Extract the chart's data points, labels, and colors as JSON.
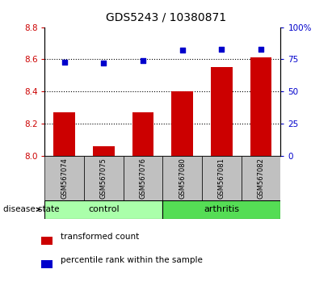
{
  "title": "GDS5243 / 10380871",
  "samples": [
    "GSM567074",
    "GSM567075",
    "GSM567076",
    "GSM567080",
    "GSM567081",
    "GSM567082"
  ],
  "bar_values": [
    8.27,
    8.06,
    8.27,
    8.4,
    8.55,
    8.61
  ],
  "scatter_values": [
    73,
    72,
    74,
    82,
    83,
    83
  ],
  "ylim_left": [
    8.0,
    8.8
  ],
  "ylim_right": [
    0,
    100
  ],
  "yticks_left": [
    8.0,
    8.2,
    8.4,
    8.6,
    8.8
  ],
  "yticks_right": [
    0,
    25,
    50,
    75,
    100
  ],
  "bar_color": "#CC0000",
  "scatter_color": "#0000CC",
  "bar_width": 0.55,
  "grid_lines": [
    8.2,
    8.4,
    8.6
  ],
  "disease_state_label": "disease state",
  "legend_bar_label": "transformed count",
  "legend_scatter_label": "percentile rank within the sample",
  "sample_box_color": "#C0C0C0",
  "control_color": "#AAFFAA",
  "arthritis_color": "#55DD55",
  "title_fontsize": 10,
  "tick_fontsize": 7.5,
  "sample_fontsize": 6,
  "group_fontsize": 8,
  "legend_fontsize": 7.5
}
